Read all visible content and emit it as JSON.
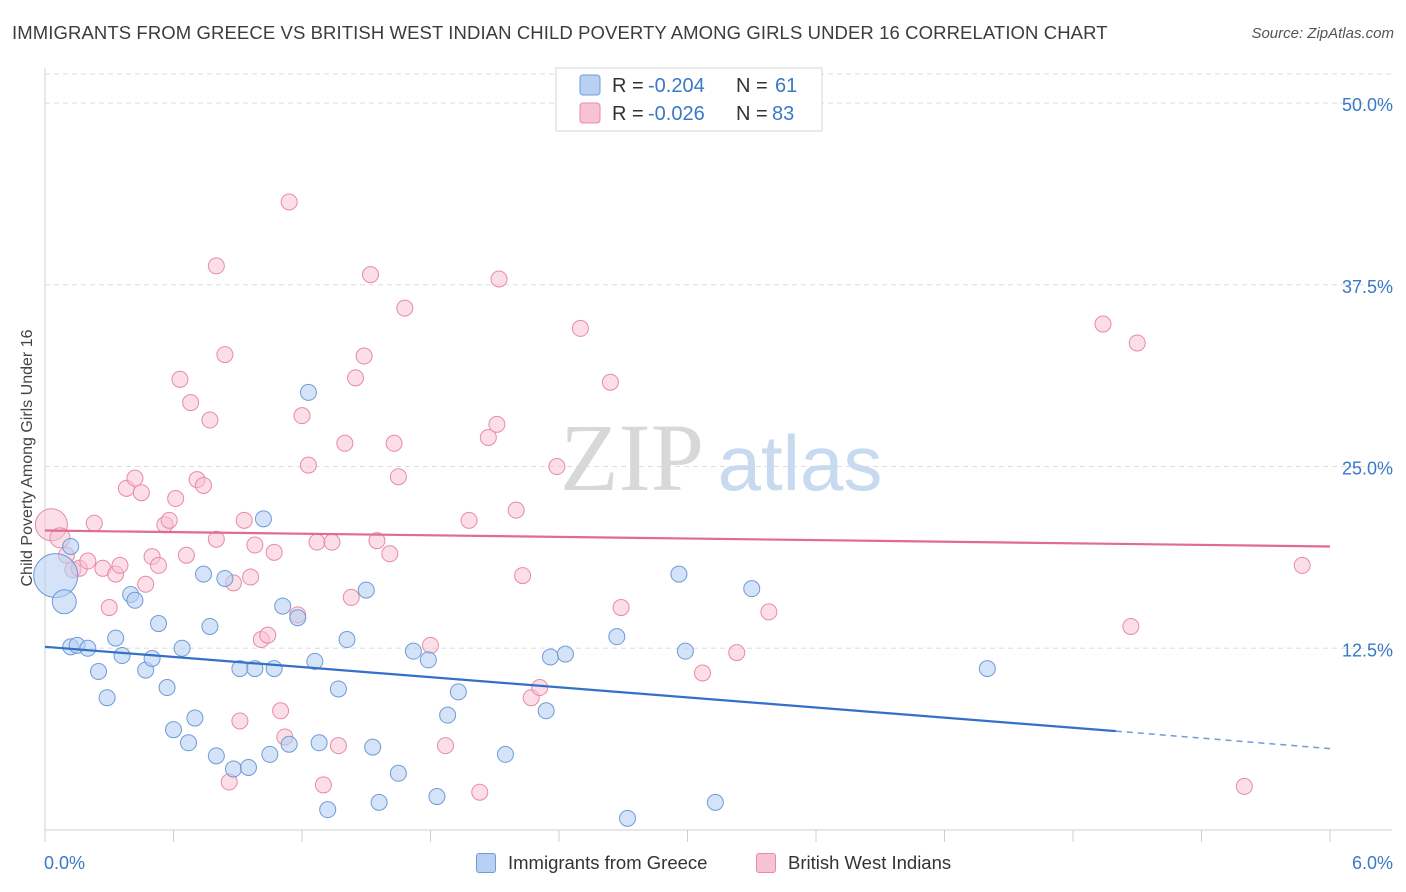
{
  "title": "IMMIGRANTS FROM GREECE VS BRITISH WEST INDIAN CHILD POVERTY AMONG GIRLS UNDER 16 CORRELATION CHART",
  "source": "Source: ZipAtlas.com",
  "watermark": {
    "zip": "ZIP",
    "atlas": "atlas"
  },
  "colors": {
    "blue_fill": "#b8d1f2",
    "blue_stroke": "#6f9bd8",
    "blue_line": "#3371c8",
    "pink_fill": "#f7c3d3",
    "pink_stroke": "#e98aa6",
    "pink_line": "#e06b93",
    "axis_text": "#3a78c8",
    "grid": "#dddddd"
  },
  "legend": {
    "rows": [
      {
        "r_label": "R = ",
        "r_value": "-0.204",
        "n_label": "N = ",
        "n_value": "61"
      },
      {
        "r_label": "R = ",
        "r_value": "-0.026",
        "n_label": "N = ",
        "n_value": "83"
      }
    ]
  },
  "bottom_legend": [
    "Immigrants from Greece",
    "British West Indians"
  ],
  "chart_data": {
    "type": "scatter",
    "title": "IMMIGRANTS FROM GREECE VS BRITISH WEST INDIAN CHILD POVERTY AMONG GIRLS UNDER 16 CORRELATION CHART",
    "xlabel": "",
    "ylabel": "Child Poverty Among Girls Under 16",
    "xlim": [
      0,
      6
    ],
    "ylim": [
      0,
      52
    ],
    "x_tick_labels": [
      "0.0%",
      "6.0%"
    ],
    "y_ticks": [
      12.5,
      25,
      37.5,
      50
    ],
    "y_tick_labels": [
      "12.5%",
      "25.0%",
      "37.5%",
      "50.0%"
    ],
    "grid": true,
    "legend_position": "top-center",
    "series": [
      {
        "name": "Immigrants from Greece",
        "r": -0.204,
        "n": 61,
        "trend": {
          "x_start": 0.0,
          "y_start": 12.6,
          "x_solid_end": 5.0,
          "y_solid_end": 6.8,
          "x_end": 6.0,
          "y_end": 5.6
        },
        "points": [
          [
            0.05,
            17.5,
            22
          ],
          [
            0.09,
            15.7,
            12
          ],
          [
            0.12,
            19.5,
            8
          ],
          [
            0.12,
            12.6,
            8
          ],
          [
            0.15,
            12.7,
            8
          ],
          [
            0.2,
            12.5,
            8
          ],
          [
            0.25,
            10.9,
            8
          ],
          [
            0.29,
            9.1,
            8
          ],
          [
            0.33,
            13.2,
            8
          ],
          [
            0.36,
            12.0,
            8
          ],
          [
            0.4,
            16.2,
            8
          ],
          [
            0.42,
            15.8,
            8
          ],
          [
            0.47,
            11.0,
            8
          ],
          [
            0.5,
            11.8,
            8
          ],
          [
            0.53,
            14.2,
            8
          ],
          [
            0.57,
            9.8,
            8
          ],
          [
            0.6,
            6.9,
            8
          ],
          [
            0.64,
            12.5,
            8
          ],
          [
            0.67,
            6.0,
            8
          ],
          [
            0.7,
            7.7,
            8
          ],
          [
            0.74,
            17.6,
            8
          ],
          [
            0.77,
            14.0,
            8
          ],
          [
            0.8,
            5.1,
            8
          ],
          [
            0.84,
            17.3,
            8
          ],
          [
            0.88,
            4.2,
            8
          ],
          [
            0.91,
            11.1,
            8
          ],
          [
            0.95,
            4.3,
            8
          ],
          [
            0.98,
            11.1,
            8
          ],
          [
            1.02,
            21.4,
            8
          ],
          [
            1.05,
            5.2,
            8
          ],
          [
            1.07,
            11.1,
            8
          ],
          [
            1.11,
            15.4,
            8
          ],
          [
            1.14,
            5.9,
            8
          ],
          [
            1.18,
            14.6,
            8
          ],
          [
            1.23,
            30.1,
            8
          ],
          [
            1.26,
            11.6,
            8
          ],
          [
            1.28,
            6.0,
            8
          ],
          [
            1.32,
            1.4,
            8
          ],
          [
            1.37,
            9.7,
            8
          ],
          [
            1.41,
            13.1,
            8
          ],
          [
            1.5,
            16.5,
            8
          ],
          [
            1.53,
            5.7,
            8
          ],
          [
            1.56,
            1.9,
            8
          ],
          [
            1.65,
            3.9,
            8
          ],
          [
            1.72,
            12.3,
            8
          ],
          [
            1.79,
            11.7,
            8
          ],
          [
            1.83,
            2.3,
            8
          ],
          [
            1.88,
            7.9,
            8
          ],
          [
            1.93,
            9.5,
            8
          ],
          [
            2.15,
            5.2,
            8
          ],
          [
            2.34,
            8.2,
            8
          ],
          [
            2.36,
            11.9,
            8
          ],
          [
            2.43,
            12.1,
            8
          ],
          [
            2.67,
            13.3,
            8
          ],
          [
            2.72,
            0.8,
            8
          ],
          [
            2.96,
            17.6,
            8
          ],
          [
            2.99,
            12.3,
            8
          ],
          [
            3.13,
            1.9,
            8
          ],
          [
            3.3,
            16.6,
            8
          ],
          [
            4.4,
            11.1,
            8
          ]
        ]
      },
      {
        "name": "British West Indians",
        "r": -0.026,
        "n": 83,
        "trend": {
          "x_start": 0.0,
          "y_start": 20.6,
          "x_end": 6.0,
          "y_end": 19.5
        },
        "points": [
          [
            0.03,
            21.0,
            16
          ],
          [
            0.07,
            20.1,
            10
          ],
          [
            0.1,
            18.9,
            8
          ],
          [
            0.13,
            17.9,
            8
          ],
          [
            0.16,
            18.0,
            8
          ],
          [
            0.2,
            18.5,
            8
          ],
          [
            0.23,
            21.1,
            8
          ],
          [
            0.27,
            18.0,
            8
          ],
          [
            0.3,
            15.3,
            8
          ],
          [
            0.33,
            17.6,
            8
          ],
          [
            0.35,
            18.2,
            8
          ],
          [
            0.38,
            23.5,
            8
          ],
          [
            0.42,
            24.2,
            8
          ],
          [
            0.45,
            23.2,
            8
          ],
          [
            0.47,
            16.9,
            8
          ],
          [
            0.5,
            18.8,
            8
          ],
          [
            0.53,
            18.2,
            8
          ],
          [
            0.56,
            21.0,
            8
          ],
          [
            0.58,
            21.3,
            8
          ],
          [
            0.61,
            22.8,
            8
          ],
          [
            0.63,
            31.0,
            8
          ],
          [
            0.66,
            18.9,
            8
          ],
          [
            0.68,
            29.4,
            8
          ],
          [
            0.71,
            24.1,
            8
          ],
          [
            0.74,
            23.7,
            8
          ],
          [
            0.77,
            28.2,
            8
          ],
          [
            0.8,
            20.0,
            8
          ],
          [
            0.8,
            38.8,
            8
          ],
          [
            0.84,
            32.7,
            8
          ],
          [
            0.86,
            3.3,
            8
          ],
          [
            0.88,
            17.0,
            8
          ],
          [
            0.91,
            7.5,
            8
          ],
          [
            0.93,
            21.3,
            8
          ],
          [
            0.96,
            17.4,
            8
          ],
          [
            0.98,
            19.6,
            8
          ],
          [
            1.01,
            13.1,
            8
          ],
          [
            1.04,
            13.4,
            8
          ],
          [
            1.07,
            19.1,
            8
          ],
          [
            1.1,
            8.2,
            8
          ],
          [
            1.12,
            6.4,
            8
          ],
          [
            1.14,
            43.2,
            8
          ],
          [
            1.18,
            14.8,
            8
          ],
          [
            1.2,
            28.5,
            8
          ],
          [
            1.23,
            25.1,
            8
          ],
          [
            1.27,
            19.8,
            8
          ],
          [
            1.3,
            3.1,
            8
          ],
          [
            1.34,
            19.8,
            8
          ],
          [
            1.37,
            5.8,
            8
          ],
          [
            1.4,
            26.6,
            8
          ],
          [
            1.43,
            16.0,
            8
          ],
          [
            1.45,
            31.1,
            8
          ],
          [
            1.49,
            32.6,
            8
          ],
          [
            1.52,
            38.2,
            8
          ],
          [
            1.55,
            19.9,
            8
          ],
          [
            1.61,
            19.0,
            8
          ],
          [
            1.63,
            26.6,
            8
          ],
          [
            1.65,
            24.3,
            8
          ],
          [
            1.68,
            35.9,
            8
          ],
          [
            1.8,
            12.7,
            8
          ],
          [
            1.87,
            5.8,
            8
          ],
          [
            1.98,
            21.3,
            8
          ],
          [
            2.03,
            2.6,
            8
          ],
          [
            2.07,
            27.0,
            8
          ],
          [
            2.11,
            27.9,
            8
          ],
          [
            2.12,
            37.9,
            8
          ],
          [
            2.2,
            22.0,
            8
          ],
          [
            2.23,
            17.5,
            8
          ],
          [
            2.27,
            9.1,
            8
          ],
          [
            2.31,
            9.8,
            8
          ],
          [
            2.39,
            25.0,
            8
          ],
          [
            2.5,
            34.5,
            8
          ],
          [
            2.64,
            30.8,
            8
          ],
          [
            2.69,
            15.3,
            8
          ],
          [
            3.07,
            10.8,
            8
          ],
          [
            3.23,
            12.2,
            8
          ],
          [
            3.38,
            15.0,
            8
          ],
          [
            4.94,
            34.8,
            8
          ],
          [
            5.07,
            14.0,
            8
          ],
          [
            5.1,
            33.5,
            8
          ],
          [
            5.6,
            3.0,
            8
          ],
          [
            5.87,
            18.2,
            8
          ]
        ]
      }
    ]
  }
}
